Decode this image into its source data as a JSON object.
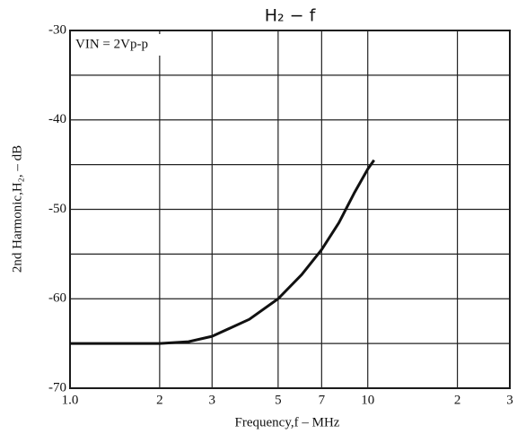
{
  "chart_data": {
    "type": "line",
    "title": "H₂ − f",
    "x_label": "Frequency,f – MHz",
    "y_label": "2nd Harmonic,H₂, – dB",
    "annotation": "VIN = 2Vp-p",
    "x_scale": "log",
    "grid": true,
    "xlim": [
      1,
      30
    ],
    "ylim": [
      -70,
      -30
    ],
    "xticks": [
      {
        "value": 1,
        "label": "1.0"
      },
      2,
      3,
      5,
      7,
      10,
      {
        "value": 20,
        "label": "2"
      },
      {
        "value": 30,
        "label": "3"
      }
    ],
    "yticks": [
      -70,
      -60,
      -50,
      -40,
      -30
    ],
    "minor_yticks": [
      -65,
      -55,
      -45,
      -35
    ],
    "series": [
      {
        "color": "#111111",
        "x": [
          1,
          1.5,
          2,
          2.5,
          3,
          4,
          5,
          6,
          7,
          8,
          9,
          10,
          10.5
        ],
        "values": [
          -65,
          -65,
          -65,
          -64.8,
          -64.2,
          -62.3,
          -60,
          -57.3,
          -54.5,
          -51.5,
          -48.2,
          -45.5,
          -44.5
        ]
      }
    ]
  }
}
